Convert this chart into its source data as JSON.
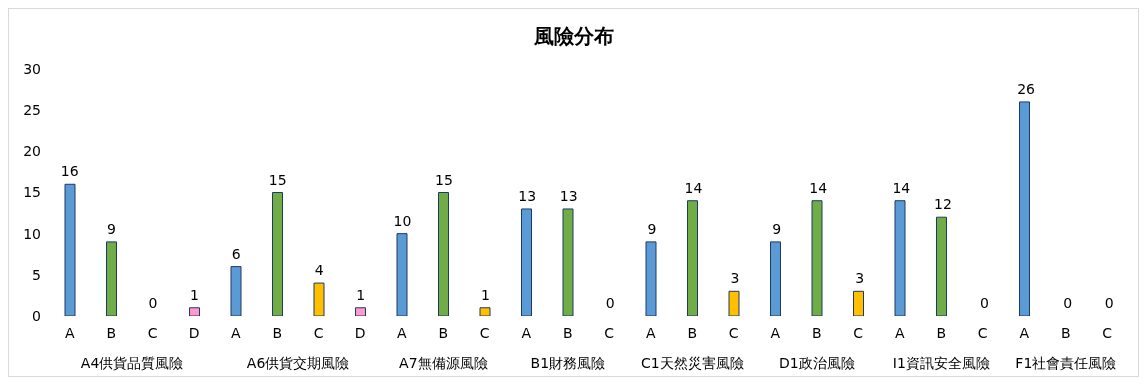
{
  "chart_data": {
    "type": "bar",
    "title": "風險分布",
    "categories": [
      "A",
      "B",
      "C",
      "D",
      "A",
      "B",
      "C",
      "D",
      "A",
      "B",
      "C",
      "A",
      "B",
      "C",
      "A",
      "B",
      "C",
      "A",
      "B",
      "C",
      "A",
      "B",
      "C",
      "A",
      "B",
      "C"
    ],
    "values": [
      16,
      9,
      0,
      1,
      6,
      15,
      4,
      1,
      10,
      15,
      1,
      13,
      13,
      0,
      9,
      14,
      3,
      9,
      14,
      3,
      14,
      12,
      0,
      26,
      0,
      0
    ],
    "colors": [
      "#5b9bd5",
      "#70ad47",
      "#ffc000",
      "#ff99cc",
      "#5b9bd5",
      "#70ad47",
      "#ffc000",
      "#ff99cc",
      "#5b9bd5",
      "#70ad47",
      "#ffc000",
      "#5b9bd5",
      "#70ad47",
      "#ffc000",
      "#5b9bd5",
      "#70ad47",
      "#ffc000",
      "#5b9bd5",
      "#70ad47",
      "#ffc000",
      "#5b9bd5",
      "#70ad47",
      "#ffc000",
      "#5b9bd5",
      "#70ad47",
      "#ffc000"
    ],
    "annotations": [
      "A4供貨品質風險",
      "A6供貨交期風險",
      "A7無備源風險",
      "B1財務風險",
      "C1天然災害風險",
      "D1政治風險",
      "I1資訊安全風險",
      "F1社會責任風險"
    ],
    "ylim": [
      0,
      30
    ],
    "yticks": [
      0,
      5,
      10,
      15,
      20,
      25,
      30
    ],
    "data_labels": true
  }
}
